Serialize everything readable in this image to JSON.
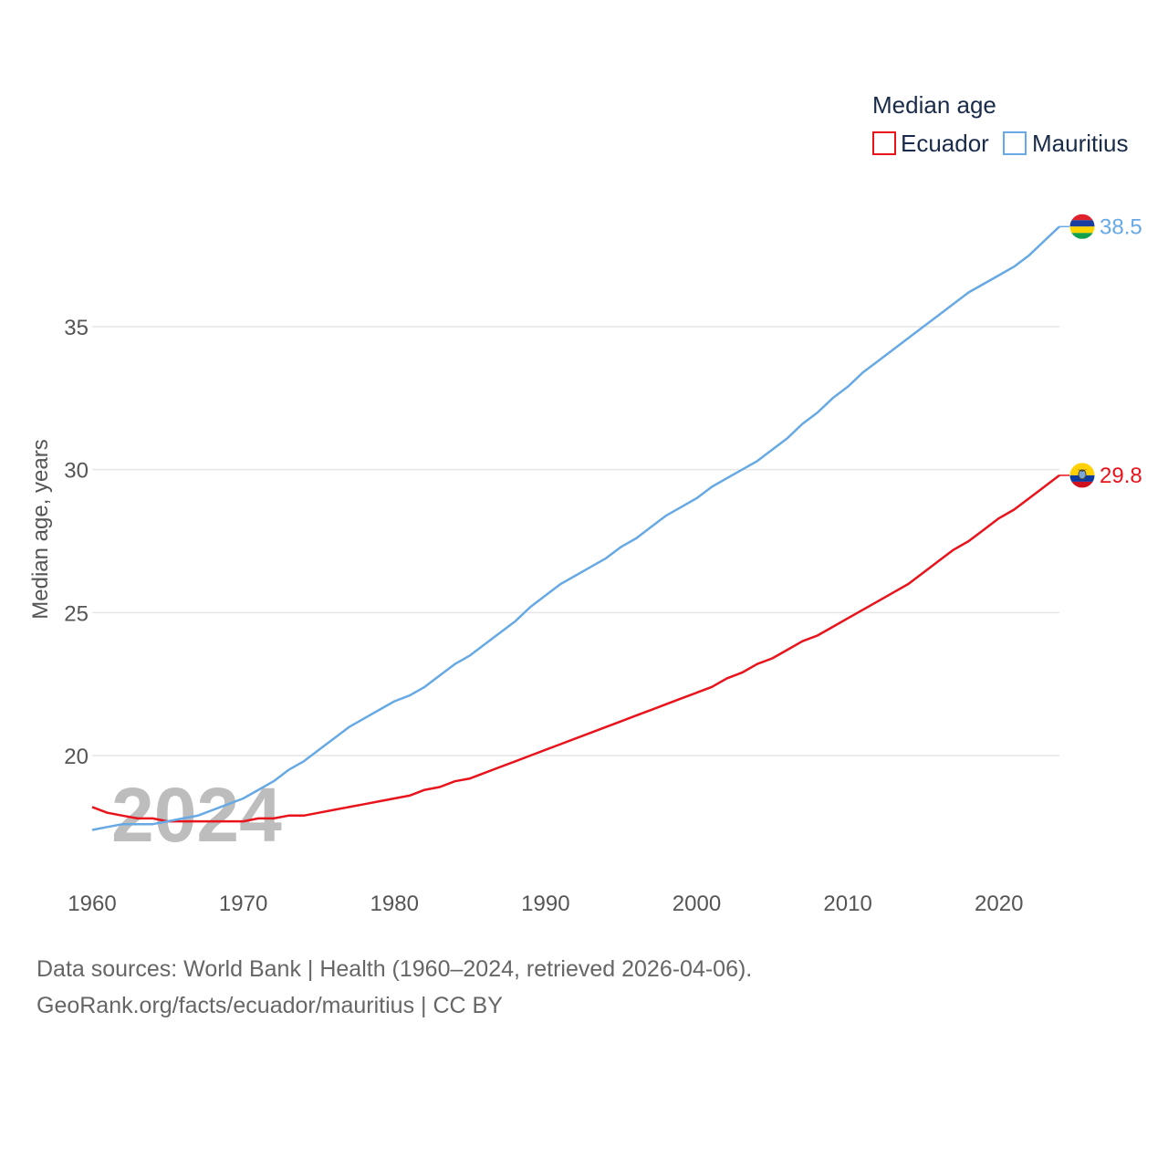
{
  "chart_data": {
    "type": "line",
    "legend_title": "Median age",
    "ylabel": "Median age, years",
    "year_watermark": "2024",
    "xlim": [
      1960,
      2024
    ],
    "ylim": [
      16,
      39
    ],
    "xticks": [
      1960,
      1970,
      1980,
      1990,
      2000,
      2010,
      2020
    ],
    "yticks": [
      20,
      25,
      30,
      35
    ],
    "x": [
      1960,
      1961,
      1962,
      1963,
      1964,
      1965,
      1966,
      1967,
      1968,
      1969,
      1970,
      1971,
      1972,
      1973,
      1974,
      1975,
      1976,
      1977,
      1978,
      1979,
      1980,
      1981,
      1982,
      1983,
      1984,
      1985,
      1986,
      1987,
      1988,
      1989,
      1990,
      1991,
      1992,
      1993,
      1994,
      1995,
      1996,
      1997,
      1998,
      1999,
      2000,
      2001,
      2002,
      2003,
      2004,
      2005,
      2006,
      2007,
      2008,
      2009,
      2010,
      2011,
      2012,
      2013,
      2014,
      2015,
      2016,
      2017,
      2018,
      2019,
      2020,
      2021,
      2022,
      2023,
      2024
    ],
    "series": [
      {
        "name": "Ecuador",
        "color": "#e8131b",
        "end_label": "29.8",
        "flag": "ecuador-flag-icon",
        "values": [
          18.2,
          18.0,
          17.9,
          17.8,
          17.8,
          17.7,
          17.7,
          17.7,
          17.7,
          17.7,
          17.7,
          17.8,
          17.8,
          17.9,
          17.9,
          18.0,
          18.1,
          18.2,
          18.3,
          18.4,
          18.5,
          18.6,
          18.8,
          18.9,
          19.1,
          19.2,
          19.4,
          19.6,
          19.8,
          20.0,
          20.2,
          20.4,
          20.6,
          20.8,
          21.0,
          21.2,
          21.4,
          21.6,
          21.8,
          22.0,
          22.2,
          22.4,
          22.7,
          22.9,
          23.2,
          23.4,
          23.7,
          24.0,
          24.2,
          24.5,
          24.8,
          25.1,
          25.4,
          25.7,
          26.0,
          26.4,
          26.8,
          27.2,
          27.5,
          27.9,
          28.3,
          28.6,
          29.0,
          29.4,
          29.8
        ]
      },
      {
        "name": "Mauritius",
        "color": "#67a9e5",
        "end_label": "38.5",
        "flag": "mauritius-flag-icon",
        "values": [
          17.4,
          17.5,
          17.6,
          17.6,
          17.6,
          17.7,
          17.8,
          17.9,
          18.1,
          18.3,
          18.5,
          18.8,
          19.1,
          19.5,
          19.8,
          20.2,
          20.6,
          21.0,
          21.3,
          21.6,
          21.9,
          22.1,
          22.4,
          22.8,
          23.2,
          23.5,
          23.9,
          24.3,
          24.7,
          25.2,
          25.6,
          26.0,
          26.3,
          26.6,
          26.9,
          27.3,
          27.6,
          28.0,
          28.4,
          28.7,
          29.0,
          29.4,
          29.7,
          30.0,
          30.3,
          30.7,
          31.1,
          31.6,
          32.0,
          32.5,
          32.9,
          33.4,
          33.8,
          34.2,
          34.6,
          35.0,
          35.4,
          35.8,
          36.2,
          36.5,
          36.8,
          37.1,
          37.5,
          38.0,
          38.5
        ]
      }
    ]
  },
  "footer": {
    "source_line": "Data sources: World Bank | Health (1960–2024, retrieved 2026-04-06).",
    "credit_line": "GeoRank.org/facts/ecuador/mauritius | CC BY"
  }
}
